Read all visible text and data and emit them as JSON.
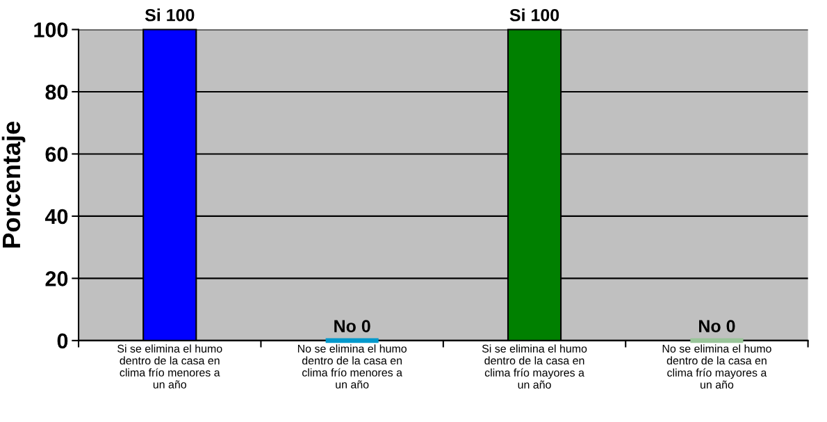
{
  "chart_data": {
    "type": "bar",
    "categories": [
      "Si se elimina el humo dentro de la casa en clima frío menores a un año",
      "No se elimina el humo dentro de la casa en clima frío menores a un año",
      "Si se elimina el humo dentro de la casa en clima frío mayores a un año",
      "No se elimina el humo dentro de la casa en clima frío mayores a un año"
    ],
    "values": [
      100,
      0,
      100,
      0
    ],
    "colors": [
      "#0000ff",
      "#0099cc",
      "#008000",
      "#99c499"
    ],
    "value_labels": [
      "Si 100",
      "No 0",
      "Si 100",
      "No 0"
    ],
    "ylabel": "Porcentaje",
    "ylim": [
      0,
      100
    ],
    "yticks": [
      0,
      20,
      40,
      60,
      80,
      100
    ],
    "grid": "y",
    "legend": false
  }
}
